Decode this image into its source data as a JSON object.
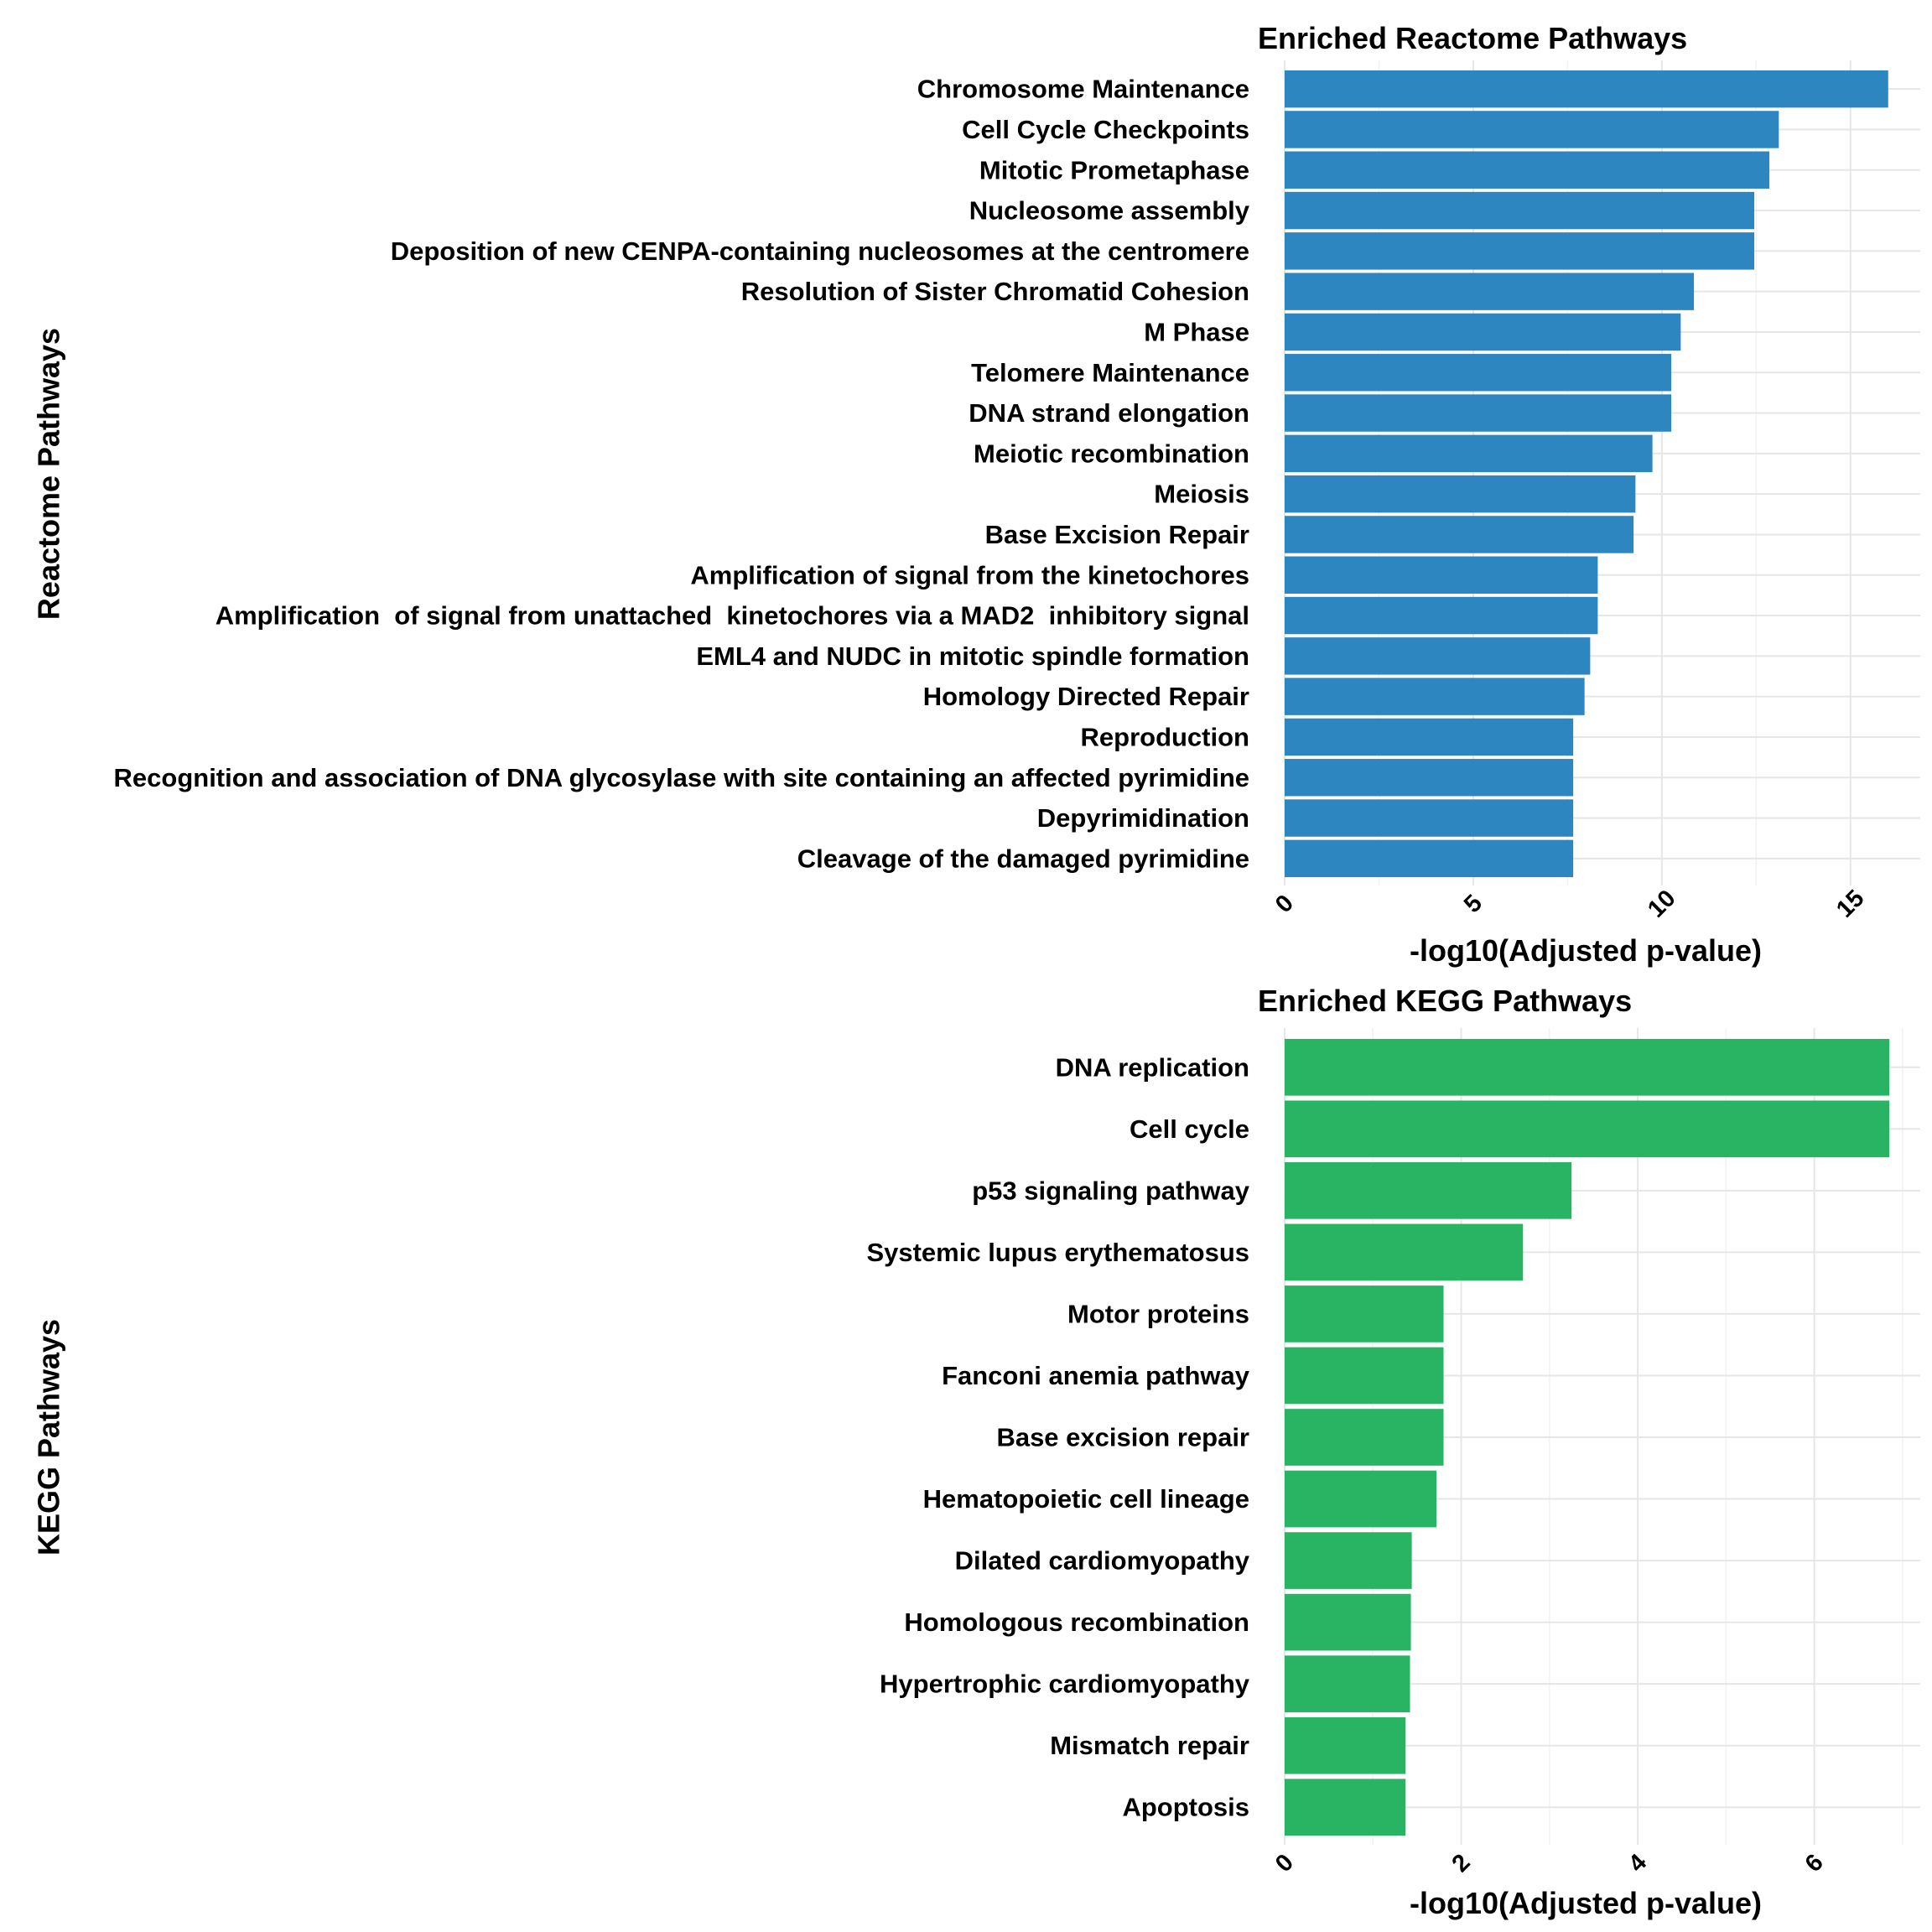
{
  "chart_data": [
    {
      "type": "bar",
      "orientation": "horizontal",
      "title": "Enriched Reactome Pathways",
      "xlabel": "-log10(Adjusted p-value)",
      "ylabel": "Reactome Pathways",
      "color": "#2e86c1",
      "xlim": [
        0,
        16.85
      ],
      "ticks": [
        0,
        5,
        10,
        15
      ],
      "tick_labels": [
        "0",
        "5",
        "10",
        "15"
      ],
      "grid": true,
      "categories": [
        "Chromosome Maintenance",
        "Cell Cycle Checkpoints",
        "Mitotic Prometaphase",
        "Nucleosome assembly",
        "Deposition of new CENPA-containing nucleosomes at the centromere",
        "Resolution of Sister Chromatid Cohesion",
        "M Phase",
        "Telomere Maintenance",
        "DNA strand elongation",
        "Meiotic recombination",
        "Meiosis",
        "Base Excision Repair",
        "Amplification of signal from the kinetochores",
        "Amplification  of signal from unattached  kinetochores via a MAD2  inhibitory signal",
        "EML4 and NUDC in mitotic spindle formation",
        "Homology Directed Repair",
        "Reproduction",
        "Recognition and association of DNA glycosylase with site containing an affected pyrimidine",
        "Depyrimidination",
        "Cleavage of the damaged pyrimidine"
      ],
      "values": [
        16.0,
        13.1,
        12.85,
        12.45,
        12.45,
        10.85,
        10.5,
        10.25,
        10.25,
        9.75,
        9.3,
        9.25,
        8.3,
        8.3,
        8.1,
        7.95,
        7.65,
        7.65,
        7.65,
        7.65
      ]
    },
    {
      "type": "bar",
      "orientation": "horizontal",
      "title": "Enriched KEGG Pathways",
      "xlabel": "-log10(Adjusted p-value)",
      "ylabel": "KEGG Pathways",
      "color": "#28b463",
      "xlim": [
        0,
        7.2
      ],
      "ticks": [
        0,
        2,
        4,
        6
      ],
      "tick_labels": [
        "0",
        "2",
        "4",
        "6"
      ],
      "grid": true,
      "categories": [
        "DNA replication",
        "Cell cycle",
        "p53 signaling pathway",
        "Systemic lupus erythematosus",
        "Motor proteins",
        "Fanconi anemia pathway",
        "Base excision repair",
        "Hematopoietic cell lineage",
        "Dilated cardiomyopathy",
        "Homologous recombination",
        "Hypertrophic cardiomyopathy",
        "Mismatch repair",
        "Apoptosis"
      ],
      "values": [
        6.85,
        6.85,
        3.25,
        2.7,
        1.8,
        1.8,
        1.8,
        1.72,
        1.44,
        1.43,
        1.42,
        1.37,
        1.37
      ]
    }
  ]
}
